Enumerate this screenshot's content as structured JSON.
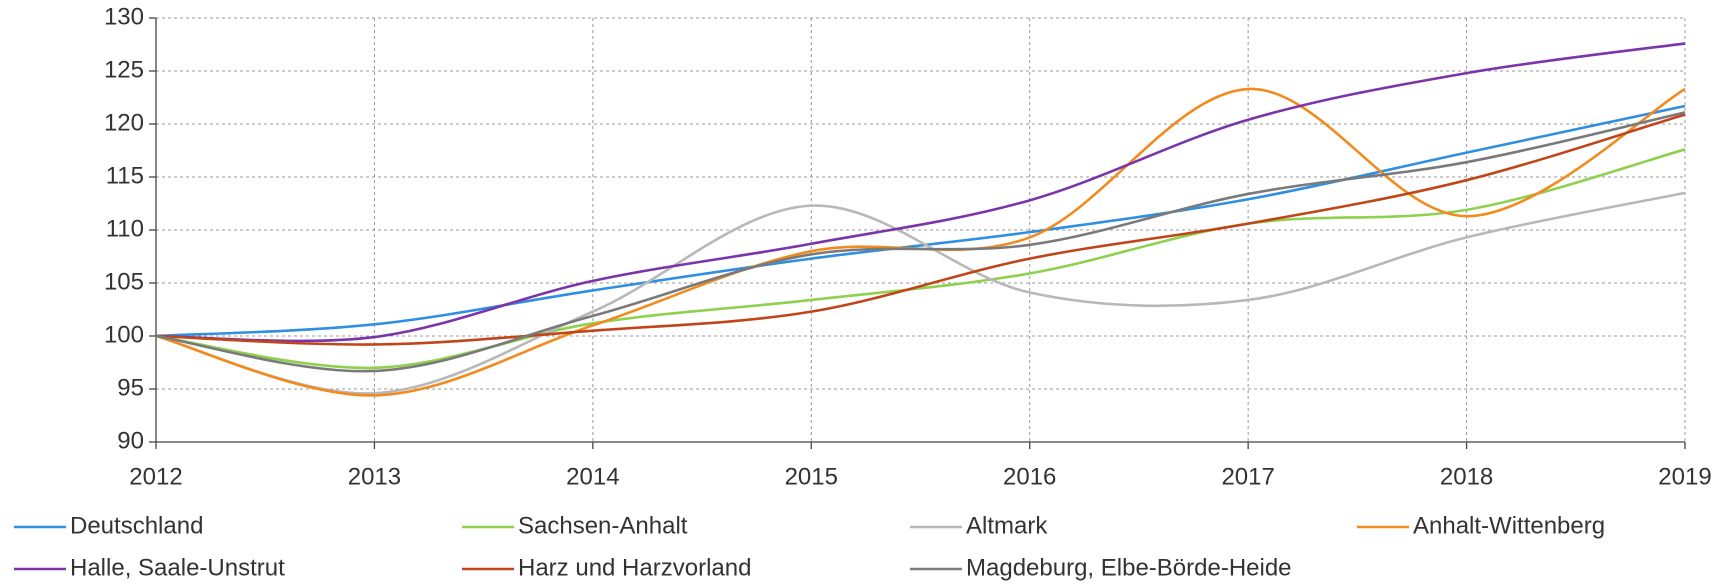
{
  "chart_data": {
    "type": "line",
    "x": [
      2012,
      2013,
      2014,
      2015,
      2016,
      2017,
      2018,
      2019
    ],
    "xlim": [
      2012,
      2019
    ],
    "xticks": [
      2012,
      2013,
      2014,
      2015,
      2016,
      2017,
      2018,
      2019
    ],
    "ylim": [
      90,
      130
    ],
    "yticks": [
      90,
      95,
      100,
      105,
      110,
      115,
      120,
      125,
      130
    ],
    "grid": true,
    "legend": "bottom",
    "series": [
      {
        "name": "Deutschland",
        "color": "#2f8fe0",
        "values": [
          100,
          101.1,
          104.3,
          107.3,
          109.8,
          112.9,
          117.3,
          121.7
        ]
      },
      {
        "name": "Sachsen-Anhalt",
        "color": "#8fd14f",
        "values": [
          100,
          97,
          101.2,
          103.4,
          105.9,
          110.6,
          111.9,
          117.6
        ]
      },
      {
        "name": "Altmark",
        "color": "#b8b8b8",
        "values": [
          100,
          94.6,
          102.3,
          112.3,
          104.1,
          103.4,
          109.3,
          113.5
        ]
      },
      {
        "name": "Anhalt-Wittenberg",
        "color": "#f28a1e",
        "values": [
          100,
          94.4,
          101,
          108,
          109.3,
          123.3,
          111.3,
          123.3
        ]
      },
      {
        "name": "Halle, Saale-Unstrut",
        "color": "#7a35a8",
        "values": [
          100,
          99.9,
          105.2,
          108.7,
          112.8,
          120.4,
          124.8,
          127.6
        ]
      },
      {
        "name": "Harz und Harzvorland",
        "color": "#c0461a",
        "values": [
          100,
          99.2,
          100.5,
          102.3,
          107.3,
          110.6,
          114.7,
          120.9
        ]
      },
      {
        "name": "Magdeburg, Elbe-Börde-Heide",
        "color": "#7a7a7a",
        "values": [
          100,
          96.7,
          101.9,
          107.7,
          108.6,
          113.4,
          116.4,
          121.1
        ]
      }
    ]
  }
}
